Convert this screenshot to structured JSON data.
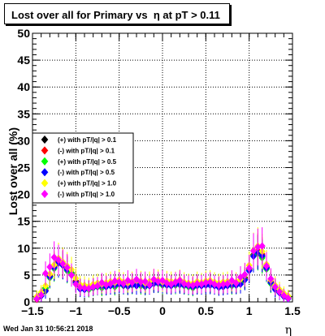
{
  "chart_data": {
    "type": "scatter",
    "title": "Lost over all for Primary vs  η at pT > 0.11",
    "xlabel": "η",
    "ylabel": "Lost over all (%)",
    "xlim": [
      -1.5,
      1.5
    ],
    "ylim": [
      0,
      50
    ],
    "x_ticks": [
      "−1.5",
      "−1",
      "−0.5",
      "0",
      "0.5",
      "1",
      "1.5"
    ],
    "y_ticks": [
      "0",
      "5",
      "10",
      "15",
      "20",
      "25",
      "30",
      "35",
      "40",
      "45",
      "50"
    ],
    "grid": true,
    "legend_position": "middle-left",
    "x": [
      -1.45,
      -1.4,
      -1.35,
      -1.3,
      -1.25,
      -1.2,
      -1.15,
      -1.1,
      -1.05,
      -1.0,
      -0.95,
      -0.9,
      -0.85,
      -0.8,
      -0.75,
      -0.7,
      -0.65,
      -0.6,
      -0.55,
      -0.5,
      -0.45,
      -0.4,
      -0.35,
      -0.3,
      -0.25,
      -0.2,
      -0.15,
      -0.1,
      -0.05,
      0.0,
      0.05,
      0.1,
      0.15,
      0.2,
      0.25,
      0.3,
      0.35,
      0.4,
      0.45,
      0.5,
      0.55,
      0.6,
      0.65,
      0.7,
      0.75,
      0.8,
      0.85,
      0.9,
      0.95,
      1.0,
      1.05,
      1.1,
      1.15,
      1.2,
      1.25,
      1.3,
      1.35,
      1.4,
      1.45
    ],
    "series": [
      {
        "name": "(+) with pT/|q| > 0.1",
        "color": "#000000",
        "values": [
          0.8,
          1.5,
          2.6,
          4.8,
          6.5,
          7.6,
          6.9,
          6.1,
          5.4,
          3.9,
          2.8,
          2.7,
          2.4,
          2.9,
          3.0,
          2.8,
          3.1,
          3.3,
          3.0,
          3.6,
          3.2,
          3.0,
          3.2,
          3.4,
          3.4,
          3.0,
          3.3,
          3.7,
          3.6,
          3.2,
          3.4,
          3.3,
          3.3,
          3.6,
          3.2,
          3.0,
          2.9,
          3.3,
          3.1,
          3.4,
          3.5,
          3.2,
          3.0,
          3.2,
          3.3,
          3.3,
          3.2,
          3.7,
          4.5,
          6.2,
          8.8,
          9.3,
          8.5,
          6.4,
          3.6,
          2.7,
          2.0,
          1.3,
          0.9
        ]
      },
      {
        "name": "(-) with pT/|q| > 0.1",
        "color": "#ff0000",
        "values": [
          0.5,
          1.2,
          2.2,
          5.0,
          6.7,
          7.5,
          7.0,
          6.3,
          5.1,
          3.8,
          2.6,
          2.5,
          2.6,
          2.8,
          3.1,
          3.3,
          3.0,
          3.2,
          3.3,
          3.5,
          3.3,
          3.1,
          3.4,
          3.2,
          3.5,
          3.1,
          3.2,
          3.6,
          3.7,
          3.5,
          3.3,
          3.2,
          3.5,
          3.4,
          3.3,
          3.2,
          3.0,
          3.2,
          3.2,
          3.3,
          3.3,
          3.2,
          2.9,
          3.0,
          3.2,
          3.4,
          3.3,
          3.5,
          4.3,
          6.0,
          8.7,
          9.5,
          8.9,
          6.6,
          3.8,
          2.5,
          1.8,
          1.1,
          0.7
        ]
      },
      {
        "name": "(+) with pT/|q| > 0.5",
        "color": "#00ff00",
        "values": [
          0.8,
          1.4,
          2.5,
          4.5,
          6.2,
          7.2,
          6.8,
          5.8,
          5.3,
          3.5,
          2.5,
          2.4,
          2.3,
          2.6,
          2.8,
          2.6,
          2.9,
          3.1,
          2.8,
          3.4,
          3.0,
          2.9,
          3.1,
          3.2,
          3.0,
          2.8,
          3.2,
          3.5,
          3.4,
          3.1,
          3.2,
          3.1,
          3.1,
          3.4,
          3.0,
          2.8,
          2.6,
          3.1,
          3.0,
          3.3,
          3.2,
          3.0,
          2.8,
          3.0,
          3.1,
          3.0,
          3.1,
          3.5,
          4.2,
          5.9,
          8.6,
          9.0,
          8.2,
          6.1,
          3.4,
          2.5,
          1.8,
          1.2,
          0.8
        ]
      },
      {
        "name": "(-) with pT/|q| > 0.5",
        "color": "#0000ff",
        "values": [
          0.6,
          1.1,
          2.0,
          4.7,
          6.4,
          7.3,
          6.8,
          6.0,
          5.0,
          3.6,
          2.4,
          2.3,
          2.5,
          2.7,
          2.9,
          3.0,
          2.8,
          3.0,
          3.1,
          3.3,
          3.1,
          2.9,
          3.2,
          3.0,
          3.3,
          2.9,
          3.0,
          3.4,
          3.5,
          3.3,
          3.1,
          3.0,
          3.3,
          3.2,
          3.1,
          3.0,
          2.8,
          3.0,
          3.0,
          3.1,
          3.1,
          3.0,
          2.7,
          2.8,
          3.0,
          3.2,
          3.1,
          3.3,
          4.1,
          5.8,
          8.5,
          9.2,
          8.6,
          6.3,
          3.6,
          2.3,
          1.7,
          1.0,
          0.6
        ]
      },
      {
        "name": "(+) with pT/|q| > 1.0",
        "color": "#ffff00",
        "values": [
          1.0,
          1.8,
          3.0,
          5.2,
          6.9,
          8.1,
          7.4,
          6.7,
          6.0,
          4.4,
          3.2,
          3.1,
          2.9,
          3.3,
          3.5,
          3.3,
          3.6,
          3.8,
          3.6,
          4.1,
          3.7,
          3.5,
          3.8,
          4.0,
          3.9,
          3.5,
          3.8,
          4.2,
          4.1,
          3.7,
          3.9,
          3.8,
          3.8,
          4.1,
          3.7,
          3.5,
          3.4,
          3.8,
          3.6,
          3.9,
          4.0,
          3.7,
          3.5,
          3.7,
          3.8,
          3.8,
          3.7,
          4.2,
          5.0,
          6.8,
          9.6,
          10.4,
          9.4,
          7.0,
          4.1,
          3.1,
          2.3,
          1.6,
          1.1
        ]
      },
      {
        "name": "(-) with pT/|q| > 1.0",
        "color": "#ff00ff",
        "values": [
          0.6,
          1.3,
          5.3,
          6.5,
          8.3,
          7.8,
          7.1,
          6.4,
          5.0,
          3.3,
          2.7,
          2.6,
          2.5,
          2.8,
          3.0,
          3.6,
          3.2,
          3.4,
          3.9,
          3.7,
          3.4,
          4.0,
          3.6,
          4.2,
          3.7,
          3.8,
          3.2,
          4.2,
          3.8,
          4.0,
          3.5,
          3.3,
          3.7,
          4.0,
          3.4,
          3.2,
          3.1,
          3.4,
          3.3,
          3.6,
          3.7,
          3.3,
          3.1,
          3.3,
          3.4,
          4.0,
          3.5,
          4.6,
          5.1,
          6.3,
          9.5,
          10.2,
          10.4,
          6.7,
          4.3,
          2.8,
          1.9,
          1.2,
          0.7
        ]
      }
    ]
  },
  "footer": {
    "timestamp": "Wed Jan 31 10:56:21 2018"
  }
}
